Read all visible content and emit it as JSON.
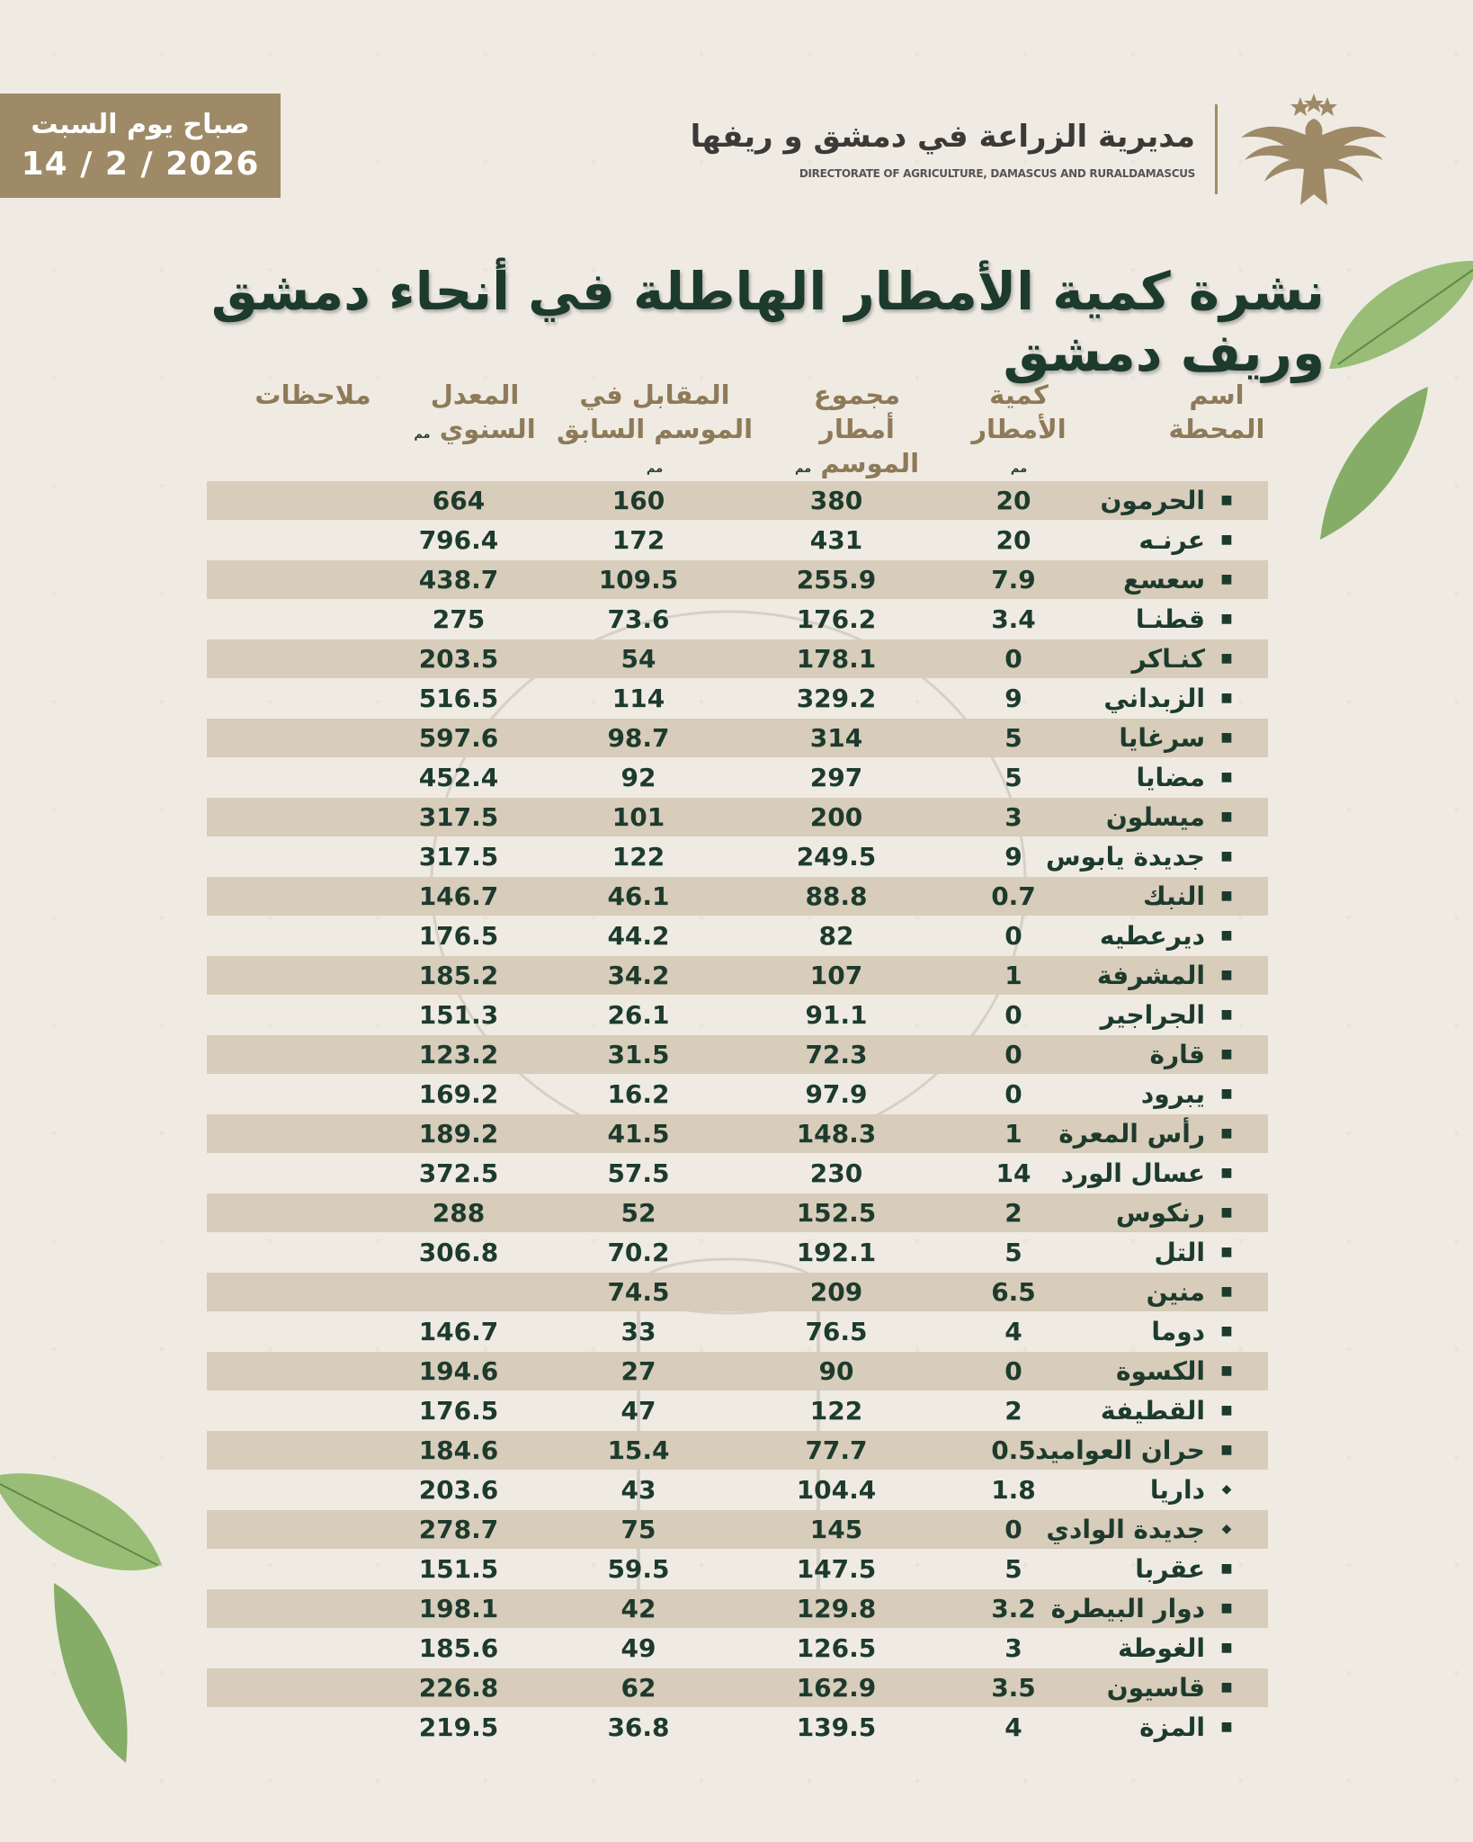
{
  "date_box": {
    "line1": "صباح يوم السبت",
    "line2": "14 / 2 / 2026"
  },
  "logo": {
    "arabic": "مديرية الزراعة في دمشق و ريفها",
    "english": "DIRECTORATE OF AGRICULTURE, DAMASCUS AND RURALDAMASCUS"
  },
  "title": "نشرة كمية الأمطار الهاطلة في أنحاء دمشق وريف دمشق",
  "headers": {
    "station": "اسم المحطة",
    "rain": "كمية الأمطار",
    "season": "مجموع أمطار الموسم",
    "prev": "المقابل في الموسم السابق",
    "avg": "المعدل السنوي",
    "notes": "ملاحظات",
    "unit": "مم"
  },
  "rows": [
    {
      "station": "الحرمون",
      "rain": "20",
      "season": "380",
      "prev": "160",
      "avg": "664",
      "notes": "",
      "bullet": "■"
    },
    {
      "station": "عرنـه",
      "rain": "20",
      "season": "431",
      "prev": "172",
      "avg": "796.4",
      "notes": "",
      "bullet": "■"
    },
    {
      "station": "سعسع",
      "rain": "7.9",
      "season": "255.9",
      "prev": "109.5",
      "avg": "438.7",
      "notes": "",
      "bullet": "■"
    },
    {
      "station": "قطنـا",
      "rain": "3.4",
      "season": "176.2",
      "prev": "73.6",
      "avg": "275",
      "notes": "",
      "bullet": "■"
    },
    {
      "station": "كنـاكر",
      "rain": "0",
      "season": "178.1",
      "prev": "54",
      "avg": "203.5",
      "notes": "",
      "bullet": "■"
    },
    {
      "station": "الزبداني",
      "rain": "9",
      "season": "329.2",
      "prev": "114",
      "avg": "516.5",
      "notes": "",
      "bullet": "■"
    },
    {
      "station": "سرغايا",
      "rain": "5",
      "season": "314",
      "prev": "98.7",
      "avg": "597.6",
      "notes": "",
      "bullet": "■"
    },
    {
      "station": "مضايا",
      "rain": "5",
      "season": "297",
      "prev": "92",
      "avg": "452.4",
      "notes": "",
      "bullet": "■"
    },
    {
      "station": "ميسلون",
      "rain": "3",
      "season": "200",
      "prev": "101",
      "avg": "317.5",
      "notes": "",
      "bullet": "■"
    },
    {
      "station": "جديدة يابوس",
      "rain": "9",
      "season": "249.5",
      "prev": "122",
      "avg": "317.5",
      "notes": "",
      "bullet": "■"
    },
    {
      "station": "النبك",
      "rain": "0.7",
      "season": "88.8",
      "prev": "46.1",
      "avg": "146.7",
      "notes": "",
      "bullet": "■"
    },
    {
      "station": "ديرعطيه",
      "rain": "0",
      "season": "82",
      "prev": "44.2",
      "avg": "176.5",
      "notes": "",
      "bullet": "■"
    },
    {
      "station": "المشرفة",
      "rain": "1",
      "season": "107",
      "prev": "34.2",
      "avg": "185.2",
      "notes": "",
      "bullet": "■"
    },
    {
      "station": "الجراجير",
      "rain": "0",
      "season": "91.1",
      "prev": "26.1",
      "avg": "151.3",
      "notes": "",
      "bullet": "■"
    },
    {
      "station": "قارة",
      "rain": "0",
      "season": "72.3",
      "prev": "31.5",
      "avg": "123.2",
      "notes": "",
      "bullet": "■"
    },
    {
      "station": "يبرود",
      "rain": "0",
      "season": "97.9",
      "prev": "16.2",
      "avg": "169.2",
      "notes": "",
      "bullet": "■"
    },
    {
      "station": "رأس المعرة",
      "rain": "1",
      "season": "148.3",
      "prev": "41.5",
      "avg": "189.2",
      "notes": "",
      "bullet": "■"
    },
    {
      "station": "عسال الورد",
      "rain": "14",
      "season": "230",
      "prev": "57.5",
      "avg": "372.5",
      "notes": "",
      "bullet": "■"
    },
    {
      "station": "رنكوس",
      "rain": "2",
      "season": "152.5",
      "prev": "52",
      "avg": "288",
      "notes": "",
      "bullet": "■"
    },
    {
      "station": "التل",
      "rain": "5",
      "season": "192.1",
      "prev": "70.2",
      "avg": "306.8",
      "notes": "",
      "bullet": "■"
    },
    {
      "station": "منين",
      "rain": "6.5",
      "season": "209",
      "prev": "74.5",
      "avg": "",
      "notes": "",
      "bullet": "■"
    },
    {
      "station": "دوما",
      "rain": "4",
      "season": "76.5",
      "prev": "33",
      "avg": "146.7",
      "notes": "",
      "bullet": "■"
    },
    {
      "station": "الكسوة",
      "rain": "0",
      "season": "90",
      "prev": "27",
      "avg": "194.6",
      "notes": "",
      "bullet": "■"
    },
    {
      "station": "القطيفة",
      "rain": "2",
      "season": "122",
      "prev": "47",
      "avg": "176.5",
      "notes": "",
      "bullet": "■"
    },
    {
      "station": "حران العواميد",
      "rain": "0.5",
      "season": "77.7",
      "prev": "15.4",
      "avg": "184.6",
      "notes": "",
      "bullet": "■"
    },
    {
      "station": "داريا",
      "rain": "1.8",
      "season": "104.4",
      "prev": "43",
      "avg": "203.6",
      "notes": "",
      "bullet": "◆"
    },
    {
      "station": "جديدة الوادي",
      "rain": "0",
      "season": "145",
      "prev": "75",
      "avg": "278.7",
      "notes": "",
      "bullet": "◆"
    },
    {
      "station": "عقربا",
      "rain": "5",
      "season": "147.5",
      "prev": "59.5",
      "avg": "151.5",
      "notes": "",
      "bullet": "■"
    },
    {
      "station": "دوار البيطرة",
      "rain": "3.2",
      "season": "129.8",
      "prev": "42",
      "avg": "198.1",
      "notes": "",
      "bullet": "■"
    },
    {
      "station": "الغوطة",
      "rain": "3",
      "season": "126.5",
      "prev": "49",
      "avg": "185.6",
      "notes": "",
      "bullet": "■"
    },
    {
      "station": "قاسيون",
      "rain": "3.5",
      "season": "162.9",
      "prev": "62",
      "avg": "226.8",
      "notes": "",
      "bullet": "■"
    },
    {
      "station": "المزة",
      "rain": "4",
      "season": "139.5",
      "prev": "36.8",
      "avg": "219.5",
      "notes": "",
      "bullet": "■"
    }
  ],
  "colors": {
    "shade": "#d8ccba",
    "text": "#1d3b2d",
    "header": "#8e7a58",
    "gold": "#9e8a67"
  }
}
